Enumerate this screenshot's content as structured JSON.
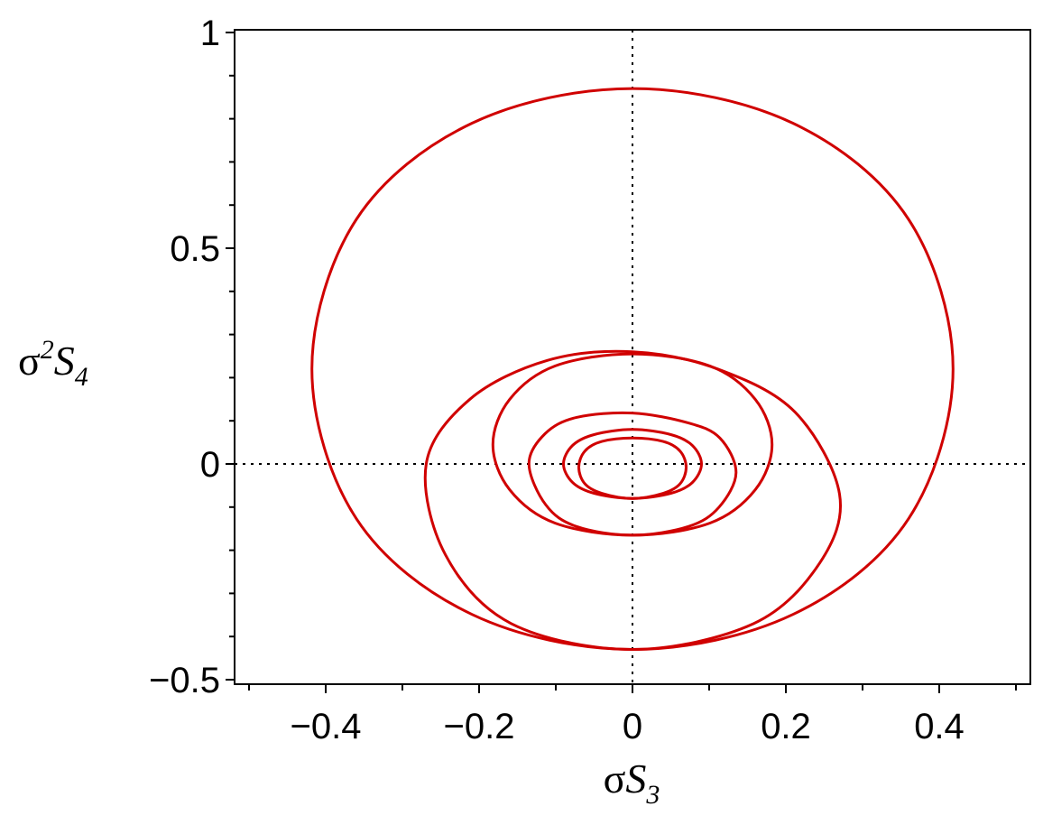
{
  "chart_data": {
    "type": "line",
    "title": "",
    "xlabel": {
      "prefix": "σ",
      "symbol": "S",
      "subscript": "3"
    },
    "ylabel": {
      "prefix": "σ",
      "superscript": "2",
      "symbol": "S",
      "subscript": "4"
    },
    "xlim": [
      -0.52,
      0.52
    ],
    "ylim": [
      -0.51,
      1.01
    ],
    "x_ticks": [
      -0.4,
      -0.2,
      0,
      0.2,
      0.4
    ],
    "x_tick_labels": [
      "−0.4",
      "−0.2",
      "0",
      "0.2",
      "0.4"
    ],
    "y_ticks": [
      -0.5,
      0,
      0.5,
      1
    ],
    "y_tick_labels": [
      "−0.5",
      "0",
      "0.5",
      "1"
    ],
    "reference_lines": {
      "x": 0,
      "y": 0,
      "style": "dotted"
    },
    "grid": false,
    "line_color": "#d00000",
    "series": [
      {
        "x": [
          0.0,
          0.209,
          0.36,
          0.418,
          0.36,
          0.209,
          0.0,
          -0.209,
          -0.36,
          -0.418,
          -0.36,
          -0.209,
          0.0
        ],
        "y": [
          -0.43,
          -0.349,
          -0.127,
          0.22,
          0.567,
          0.79,
          0.87,
          0.79,
          0.567,
          0.22,
          -0.127,
          -0.349,
          -0.43
        ]
      },
      {
        "x": [
          0.0,
          0.158,
          0.244,
          0.27,
          0.212,
          0.111,
          0.0,
          -0.111,
          -0.212,
          -0.269,
          -0.244,
          -0.158,
          0.0
        ],
        "y": [
          -0.43,
          -0.37,
          -0.23,
          -0.07,
          0.12,
          0.22,
          0.26,
          0.24,
          0.15,
          0.0,
          -0.21,
          -0.37,
          -0.43
        ]
      },
      {
        "x": [
          0.0,
          0.101,
          0.16,
          0.182,
          0.16,
          0.101,
          0.0,
          -0.101,
          -0.16,
          -0.182,
          -0.16,
          -0.101,
          0.0
        ],
        "y": [
          -0.165,
          -0.137,
          -0.06,
          0.045,
          0.15,
          0.227,
          0.255,
          0.227,
          0.15,
          0.045,
          -0.06,
          -0.137,
          -0.165
        ]
      },
      {
        "x": [
          0.0,
          0.073,
          0.113,
          0.135,
          0.114,
          0.073,
          0.0,
          -0.073,
          -0.114,
          -0.135,
          -0.113,
          -0.073,
          0.0
        ],
        "y": [
          -0.165,
          -0.145,
          -0.1,
          -0.02,
          0.06,
          0.095,
          0.118,
          0.108,
          0.07,
          0.0,
          -0.095,
          -0.145,
          -0.165
        ]
      },
      {
        "x": [
          0.0,
          0.05,
          0.078,
          0.09,
          0.078,
          0.05,
          0.0,
          -0.05,
          -0.078,
          -0.09,
          -0.078,
          -0.05,
          0.0
        ],
        "y": [
          -0.08,
          -0.068,
          -0.043,
          0.0,
          0.043,
          0.068,
          0.08,
          0.068,
          0.043,
          0.0,
          -0.043,
          -0.068,
          -0.08
        ]
      },
      {
        "x": [
          0.0,
          0.04,
          0.062,
          0.07,
          0.062,
          0.04,
          0.0,
          -0.04,
          -0.062,
          -0.07,
          -0.062,
          -0.04,
          0.0
        ],
        "y": [
          -0.08,
          -0.068,
          -0.046,
          -0.008,
          0.03,
          0.052,
          0.06,
          0.052,
          0.03,
          -0.008,
          -0.046,
          -0.068,
          -0.08
        ]
      }
    ]
  }
}
